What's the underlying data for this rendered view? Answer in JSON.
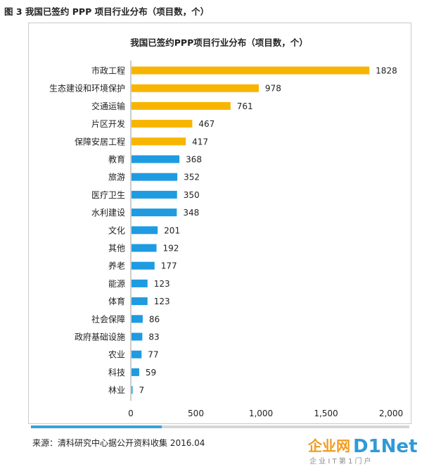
{
  "figure_caption": "图 3  我国已签约 PPP 项目行业分布（项目数，个）",
  "source_note": "来源：清科研究中心据公开资料收集 2016.04",
  "watermark": {
    "brand": "企业网D1Net",
    "tagline": "企 业 I T 第 1 门 户"
  },
  "colors": {
    "highlight": "#F7B500",
    "primary": "#1E9BE1",
    "axis": "#999999"
  },
  "chart_data": {
    "type": "bar",
    "orientation": "horizontal",
    "title": "我国已签约PPP项目行业分布（项目数，个）",
    "categories": [
      "市政工程",
      "生态建设和环境保护",
      "交通运输",
      "片区开发",
      "保障安居工程",
      "教育",
      "旅游",
      "医疗卫生",
      "水利建设",
      "文化",
      "其他",
      "养老",
      "能源",
      "体育",
      "社会保障",
      "政府基础设施",
      "农业",
      "科技",
      "林业"
    ],
    "values": [
      1828,
      978,
      761,
      467,
      417,
      368,
      352,
      350,
      348,
      201,
      192,
      177,
      123,
      123,
      86,
      83,
      77,
      59,
      7
    ],
    "highlight_count": 5,
    "xlim": [
      0,
      2000
    ],
    "xticks": [
      0,
      500,
      1000,
      1500,
      2000
    ],
    "xtick_labels": [
      "0",
      "500",
      "1,000",
      "1,500",
      "2,000"
    ],
    "grid": false,
    "legend": "none"
  }
}
